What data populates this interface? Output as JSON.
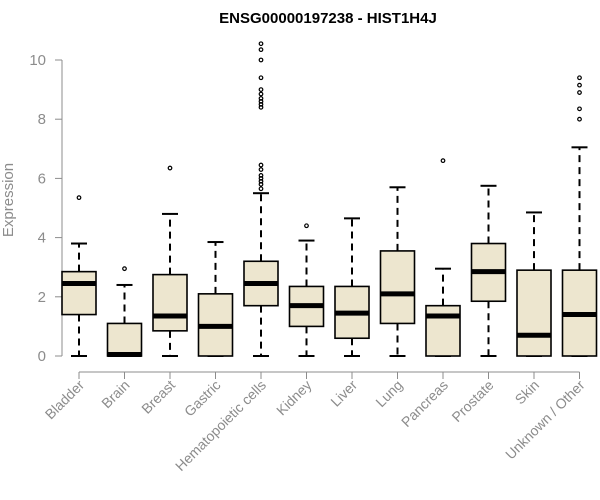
{
  "chart_data": {
    "type": "boxplot",
    "title": "ENSG00000197238 - HIST1H4J",
    "xlabel": "",
    "ylabel": "Expression",
    "ylim": [
      0,
      10.6
    ],
    "yticks": [
      0,
      2,
      4,
      6,
      8,
      10
    ],
    "grid": false,
    "box_color": "#ede6cf",
    "outline_color": "#000000",
    "categories": [
      "Bladder",
      "Brain",
      "Breast",
      "Gastric",
      "Hematopoietic cells",
      "Kidney",
      "Liver",
      "Lung",
      "Pancreas",
      "Prostate",
      "Skin",
      "Unknown / Other"
    ],
    "boxes": [
      {
        "min": 0,
        "q1": 1.4,
        "median": 2.45,
        "q3": 2.85,
        "max": 3.8,
        "outliers": [
          5.35
        ]
      },
      {
        "min": 0,
        "q1": 0,
        "median": 0.05,
        "q3": 1.1,
        "max": 2.4,
        "outliers": [
          2.95
        ]
      },
      {
        "min": 0,
        "q1": 0.85,
        "median": 1.35,
        "q3": 2.75,
        "max": 4.8,
        "outliers": [
          6.35
        ]
      },
      {
        "min": 0,
        "q1": 0,
        "median": 1.0,
        "q3": 2.1,
        "max": 3.85,
        "outliers": []
      },
      {
        "min": 0,
        "q1": 1.7,
        "median": 2.45,
        "q3": 3.2,
        "max": 5.5,
        "outliers": [
          5.65,
          5.8,
          5.9,
          6.0,
          6.1,
          6.3,
          6.45,
          8.4,
          8.5,
          8.6,
          8.7,
          8.85,
          9.0,
          9.4,
          10.0,
          10.35,
          10.55
        ]
      },
      {
        "min": 0,
        "q1": 1.0,
        "median": 1.7,
        "q3": 2.35,
        "max": 3.9,
        "outliers": [
          4.4
        ]
      },
      {
        "min": 0,
        "q1": 0.6,
        "median": 1.45,
        "q3": 2.35,
        "max": 4.65,
        "outliers": []
      },
      {
        "min": 0,
        "q1": 1.1,
        "median": 2.1,
        "q3": 3.55,
        "max": 5.7,
        "outliers": []
      },
      {
        "min": 0,
        "q1": 0,
        "median": 1.35,
        "q3": 1.7,
        "max": 2.95,
        "outliers": [
          6.6
        ]
      },
      {
        "min": 0,
        "q1": 1.85,
        "median": 2.85,
        "q3": 3.8,
        "max": 5.75,
        "outliers": []
      },
      {
        "min": 0,
        "q1": 0,
        "median": 0.7,
        "q3": 2.9,
        "max": 4.85,
        "outliers": []
      },
      {
        "min": 0,
        "q1": 0,
        "median": 1.4,
        "q3": 2.9,
        "max": 7.05,
        "outliers": [
          8.0,
          8.35,
          8.9,
          9.15,
          9.4
        ]
      }
    ]
  }
}
